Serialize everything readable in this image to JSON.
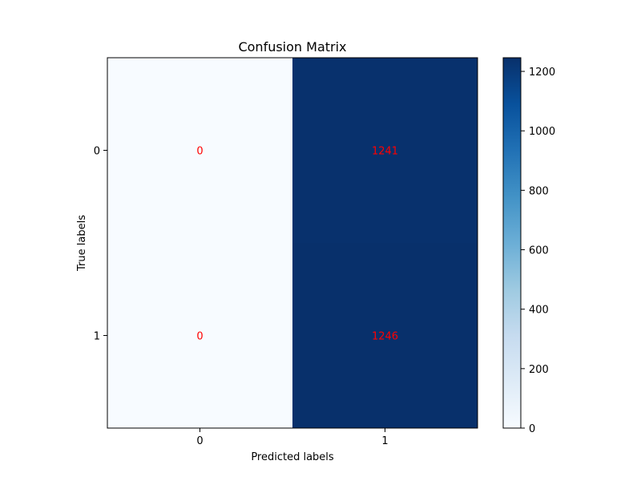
{
  "chart_data": {
    "type": "heatmap",
    "title": "Confusion Matrix",
    "xlabel": "Predicted labels",
    "ylabel": "True labels",
    "x_categories": [
      "0",
      "1"
    ],
    "y_categories": [
      "0",
      "1"
    ],
    "values": [
      [
        0,
        1241
      ],
      [
        0,
        1246
      ]
    ],
    "annotation_color": "#ff0000",
    "colormap": "Blues",
    "colormap_stops": [
      "#f7fbff",
      "#deebf7",
      "#c6dbef",
      "#9ecae1",
      "#6baed6",
      "#4292c6",
      "#2171b5",
      "#08519c",
      "#08306b"
    ],
    "vmin": 0,
    "vmax": 1246,
    "colorbar_ticks": [
      0,
      200,
      400,
      600,
      800,
      1000,
      1200
    ]
  }
}
